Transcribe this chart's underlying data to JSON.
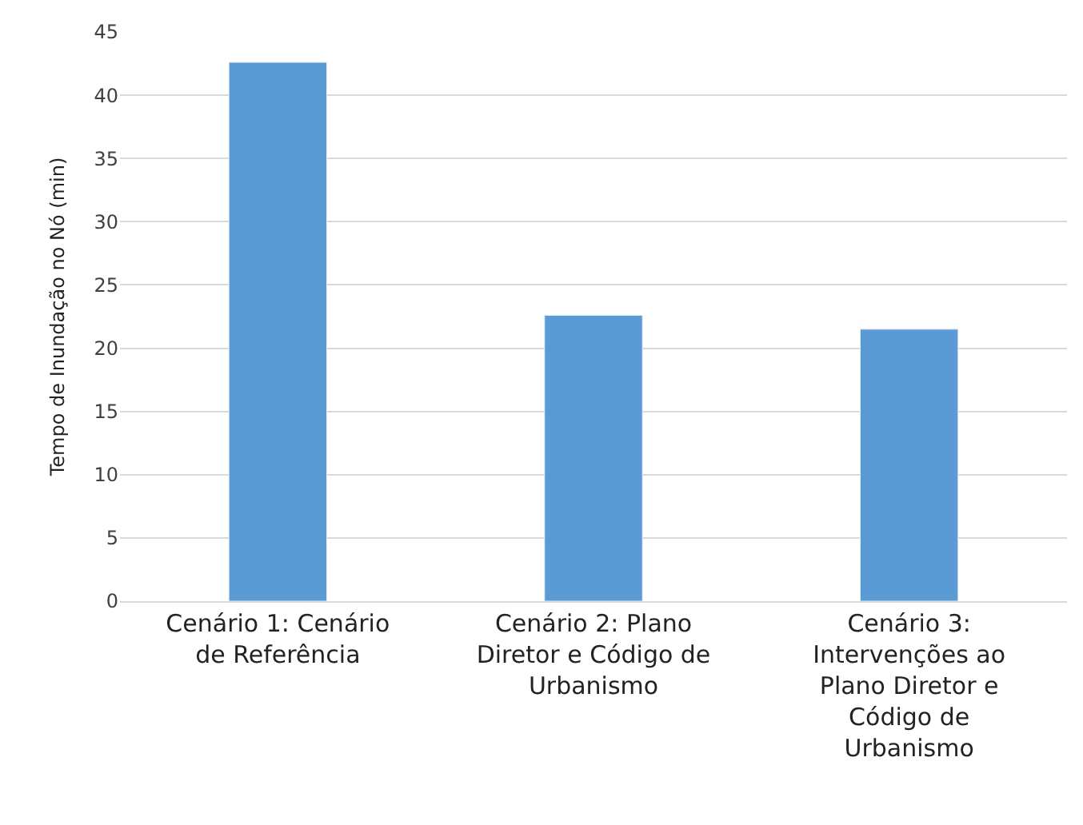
{
  "chart_data": {
    "type": "bar",
    "ylabel": "Tempo de Inundação no Nó (min)",
    "categories": [
      "Cenário 1: Cenário de Referência",
      "Cenário 2: Plano Diretor e Código de Urbanismo",
      "Cenário 3: Intervenções ao Plano Diretor e Código de Urbanismo"
    ],
    "values": [
      42.6,
      22.6,
      21.5
    ],
    "color": "#5b9bd5",
    "ylim": [
      0,
      45
    ],
    "yticks": [
      0,
      5,
      10,
      15,
      20,
      25,
      30,
      35,
      40,
      45
    ],
    "grid": "y",
    "legend": false
  }
}
